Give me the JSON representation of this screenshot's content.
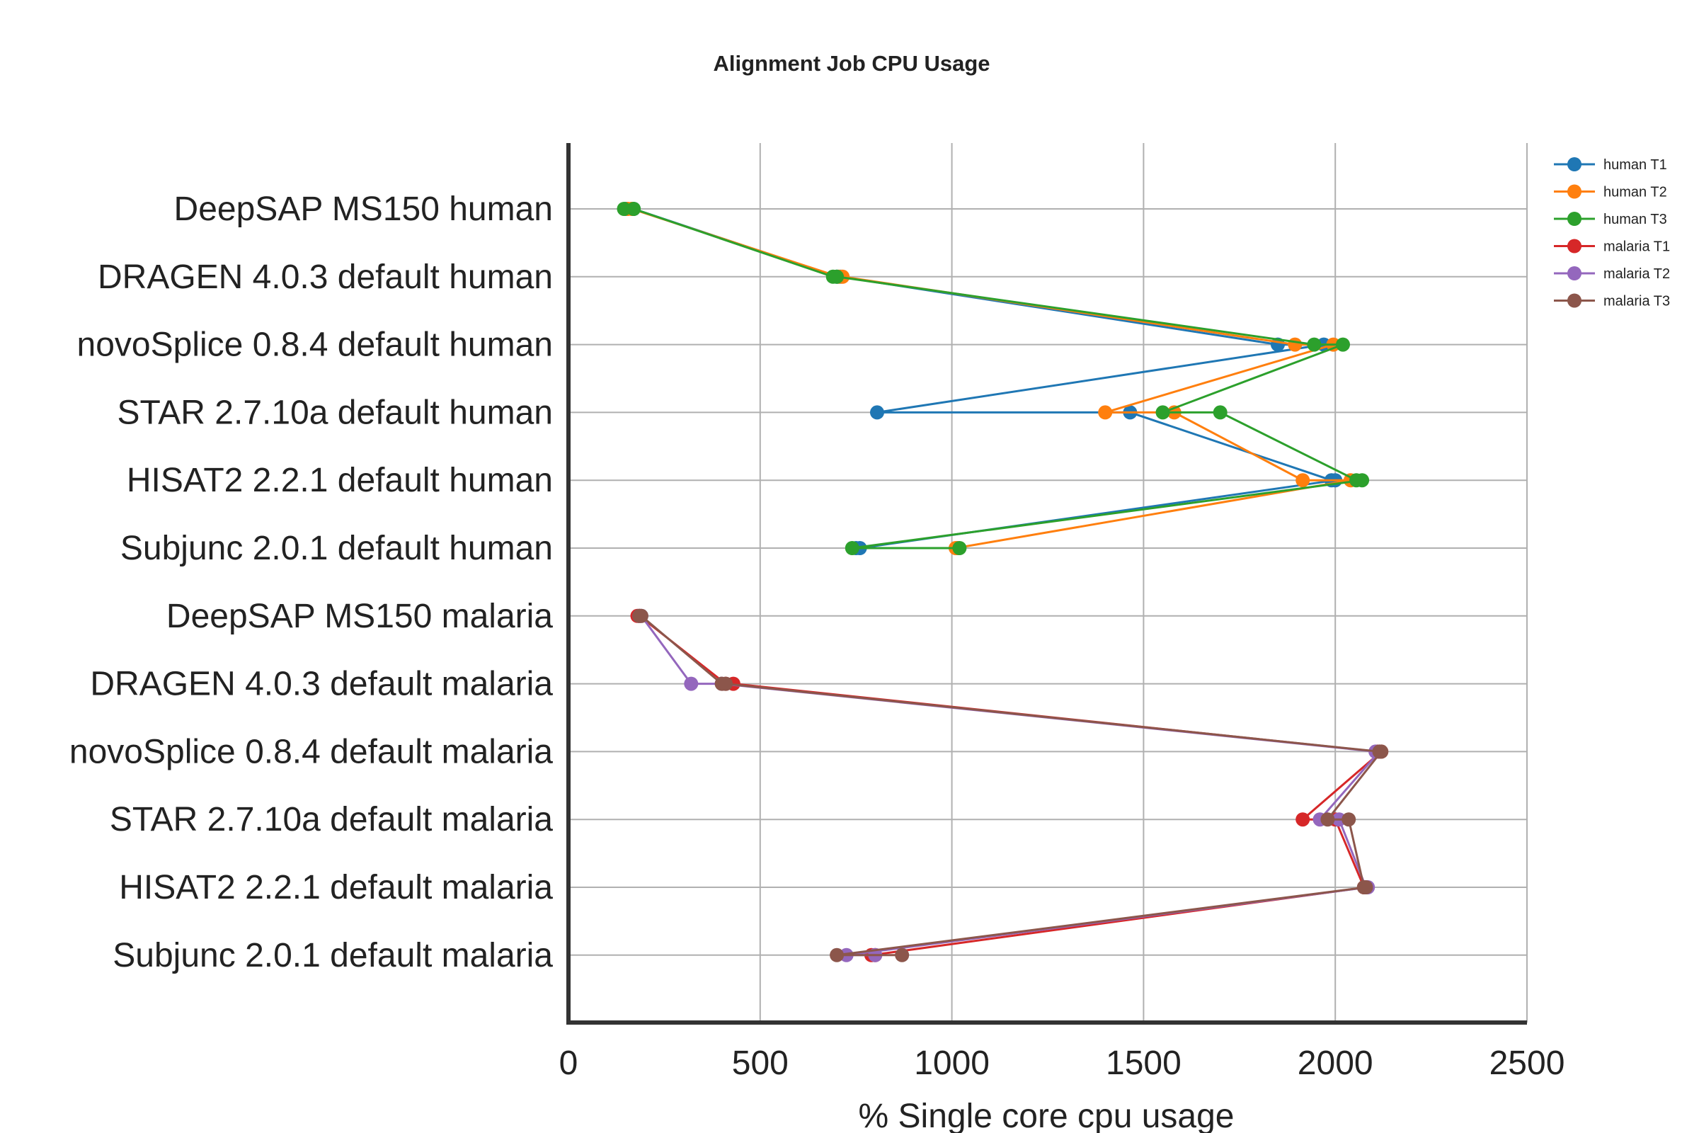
{
  "chart_data": {
    "type": "line",
    "orientation": "horizontal",
    "title": "Alignment Job CPU Usage",
    "xlabel": "% Single core cpu usage",
    "ylabel": "",
    "xlim": [
      0,
      2500
    ],
    "xticks": [
      0,
      500,
      1000,
      1500,
      2000,
      2500
    ],
    "grid": true,
    "legend_position": "top-right",
    "categories": [
      "DeepSAP MS150 human",
      "DRAGEN 4.0.3 default human",
      "novoSplice 0.8.4 default human",
      "STAR 2.7.10a default human",
      "HISAT2 2.2.1 default human",
      "Subjunc 2.0.1 default human",
      "DeepSAP MS150 malaria",
      "DRAGEN 4.0.3 default malaria",
      "novoSplice 0.8.4 default malaria",
      "STAR 2.7.10a default malaria",
      "HISAT2 2.2.1 default malaria",
      "Subjunc 2.0.1 default malaria"
    ],
    "series": [
      {
        "name": "human T1",
        "color": "#1f77b4",
        "points": [
          {
            "x": 150,
            "y": "DeepSAP MS150 human"
          },
          {
            "x": 170,
            "y": "DeepSAP MS150 human"
          },
          {
            "x": 700,
            "y": "DRAGEN 4.0.3 default human"
          },
          {
            "x": 710,
            "y": "DRAGEN 4.0.3 default human"
          },
          {
            "x": 1850,
            "y": "novoSplice 0.8.4 default human"
          },
          {
            "x": 1970,
            "y": "novoSplice 0.8.4 default human"
          },
          {
            "x": 805,
            "y": "STAR 2.7.10a default human"
          },
          {
            "x": 1465,
            "y": "STAR 2.7.10a default human"
          },
          {
            "x": 1990,
            "y": "HISAT2 2.2.1 default human"
          },
          {
            "x": 2000,
            "y": "HISAT2 2.2.1 default human"
          },
          {
            "x": 760,
            "y": "Subjunc 2.0.1 default human"
          },
          {
            "x": 750,
            "y": "Subjunc 2.0.1 default human"
          }
        ]
      },
      {
        "name": "human T2",
        "color": "#ff7f0e",
        "points": [
          {
            "x": 155,
            "y": "DeepSAP MS150 human"
          },
          {
            "x": 165,
            "y": "DeepSAP MS150 human"
          },
          {
            "x": 705,
            "y": "DRAGEN 4.0.3 default human"
          },
          {
            "x": 715,
            "y": "DRAGEN 4.0.3 default human"
          },
          {
            "x": 1895,
            "y": "novoSplice 0.8.4 default human"
          },
          {
            "x": 1995,
            "y": "novoSplice 0.8.4 default human"
          },
          {
            "x": 1400,
            "y": "STAR 2.7.10a default human"
          },
          {
            "x": 1580,
            "y": "STAR 2.7.10a default human"
          },
          {
            "x": 1915,
            "y": "HISAT2 2.2.1 default human"
          },
          {
            "x": 2040,
            "y": "HISAT2 2.2.1 default human"
          },
          {
            "x": 1010,
            "y": "Subjunc 2.0.1 default human"
          },
          {
            "x": 1015,
            "y": "Subjunc 2.0.1 default human"
          }
        ]
      },
      {
        "name": "human T3",
        "color": "#2ca02c",
        "points": [
          {
            "x": 145,
            "y": "DeepSAP MS150 human"
          },
          {
            "x": 170,
            "y": "DeepSAP MS150 human"
          },
          {
            "x": 690,
            "y": "DRAGEN 4.0.3 default human"
          },
          {
            "x": 700,
            "y": "DRAGEN 4.0.3 default human"
          },
          {
            "x": 1945,
            "y": "novoSplice 0.8.4 default human"
          },
          {
            "x": 2020,
            "y": "novoSplice 0.8.4 default human"
          },
          {
            "x": 1550,
            "y": "STAR 2.7.10a default human"
          },
          {
            "x": 1700,
            "y": "STAR 2.7.10a default human"
          },
          {
            "x": 2055,
            "y": "HISAT2 2.2.1 default human"
          },
          {
            "x": 2070,
            "y": "HISAT2 2.2.1 default human"
          },
          {
            "x": 740,
            "y": "Subjunc 2.0.1 default human"
          },
          {
            "x": 1020,
            "y": "Subjunc 2.0.1 default human"
          }
        ]
      },
      {
        "name": "malaria T1",
        "color": "#d62728",
        "points": [
          {
            "x": 180,
            "y": "DeepSAP MS150 malaria"
          },
          {
            "x": 185,
            "y": "DeepSAP MS150 malaria"
          },
          {
            "x": 410,
            "y": "DRAGEN 4.0.3 default malaria"
          },
          {
            "x": 430,
            "y": "DRAGEN 4.0.3 default malaria"
          },
          {
            "x": 2110,
            "y": "novoSplice 0.8.4 default malaria"
          },
          {
            "x": 2120,
            "y": "novoSplice 0.8.4 default malaria"
          },
          {
            "x": 1915,
            "y": "STAR 2.7.10a default malaria"
          },
          {
            "x": 2000,
            "y": "STAR 2.7.10a default malaria"
          },
          {
            "x": 2075,
            "y": "HISAT2 2.2.1 default malaria"
          },
          {
            "x": 2080,
            "y": "HISAT2 2.2.1 default malaria"
          },
          {
            "x": 790,
            "y": "Subjunc 2.0.1 default malaria"
          },
          {
            "x": 800,
            "y": "Subjunc 2.0.1 default malaria"
          }
        ]
      },
      {
        "name": "malaria T2",
        "color": "#9467bd",
        "points": [
          {
            "x": 185,
            "y": "DeepSAP MS150 malaria"
          },
          {
            "x": 190,
            "y": "DeepSAP MS150 malaria"
          },
          {
            "x": 320,
            "y": "DRAGEN 4.0.3 default malaria"
          },
          {
            "x": 400,
            "y": "DRAGEN 4.0.3 default malaria"
          },
          {
            "x": 2105,
            "y": "novoSplice 0.8.4 default malaria"
          },
          {
            "x": 2115,
            "y": "novoSplice 0.8.4 default malaria"
          },
          {
            "x": 1960,
            "y": "STAR 2.7.10a default malaria"
          },
          {
            "x": 2010,
            "y": "STAR 2.7.10a default malaria"
          },
          {
            "x": 2080,
            "y": "HISAT2 2.2.1 default malaria"
          },
          {
            "x": 2085,
            "y": "HISAT2 2.2.1 default malaria"
          },
          {
            "x": 725,
            "y": "Subjunc 2.0.1 default malaria"
          },
          {
            "x": 800,
            "y": "Subjunc 2.0.1 default malaria"
          }
        ]
      },
      {
        "name": "malaria T3",
        "color": "#8c564b",
        "points": [
          {
            "x": 185,
            "y": "DeepSAP MS150 malaria"
          },
          {
            "x": 190,
            "y": "DeepSAP MS150 malaria"
          },
          {
            "x": 400,
            "y": "DRAGEN 4.0.3 default malaria"
          },
          {
            "x": 410,
            "y": "DRAGEN 4.0.3 default malaria"
          },
          {
            "x": 2115,
            "y": "novoSplice 0.8.4 default malaria"
          },
          {
            "x": 2120,
            "y": "novoSplice 0.8.4 default malaria"
          },
          {
            "x": 1980,
            "y": "STAR 2.7.10a default malaria"
          },
          {
            "x": 2035,
            "y": "STAR 2.7.10a default malaria"
          },
          {
            "x": 2075,
            "y": "HISAT2 2.2.1 default malaria"
          },
          {
            "x": 2080,
            "y": "HISAT2 2.2.1 default malaria"
          },
          {
            "x": 700,
            "y": "Subjunc 2.0.1 default malaria"
          },
          {
            "x": 870,
            "y": "Subjunc 2.0.1 default malaria"
          }
        ]
      }
    ]
  }
}
